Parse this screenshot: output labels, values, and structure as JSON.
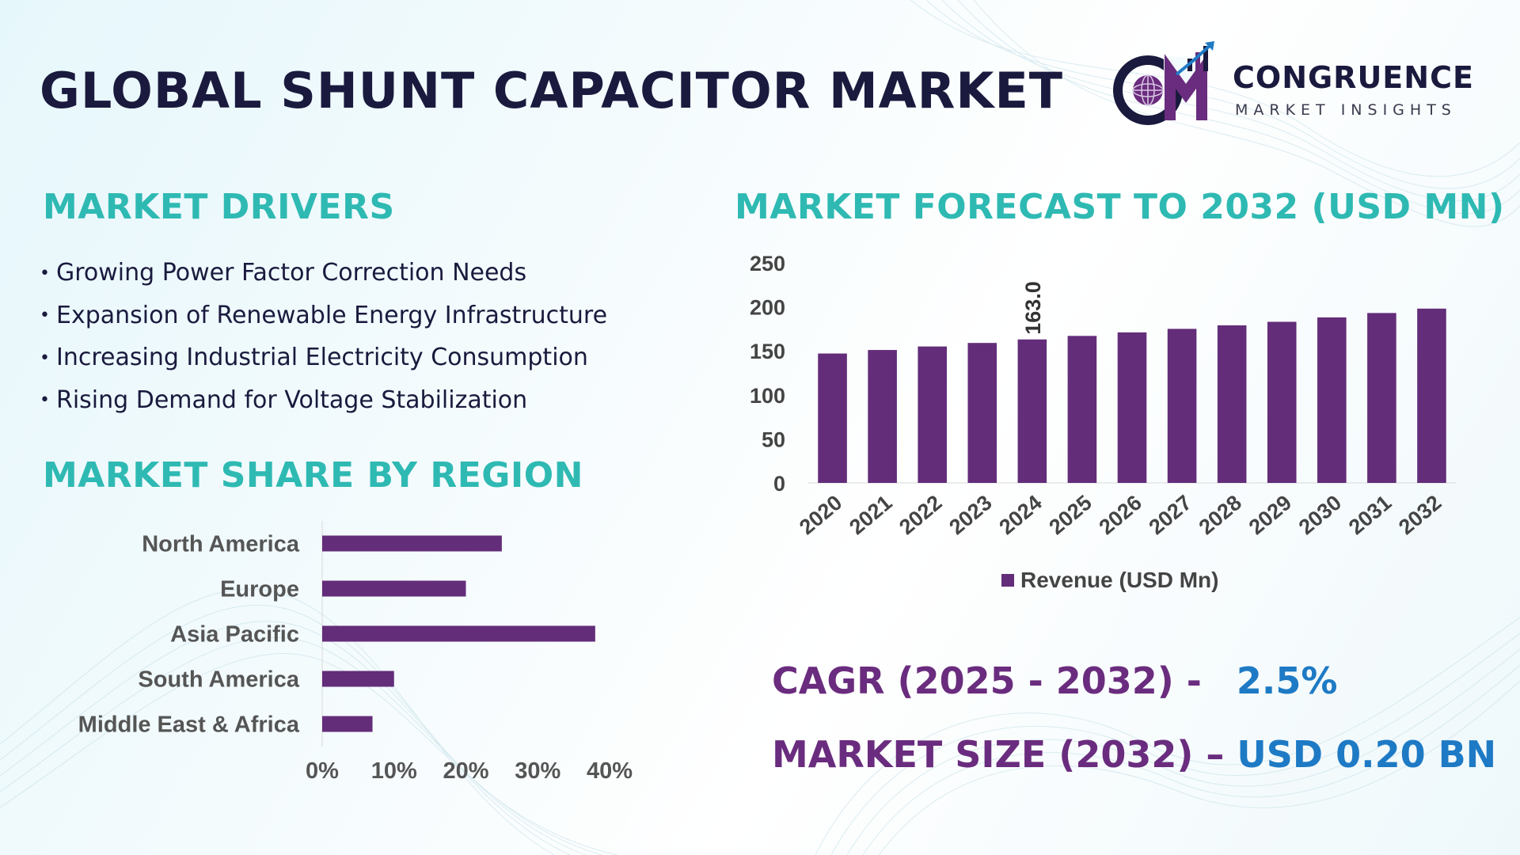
{
  "header": {
    "title": "GLOBAL SHUNT CAPACITOR MARKET",
    "logo_name": "CONGRUENCE",
    "logo_tagline": "MARKET INSIGHTS",
    "logo_icon": "cmi-globe-chart-logo-icon"
  },
  "drivers": {
    "title": "MARKET DRIVERS",
    "items": [
      "Growing Power Factor Correction Needs",
      "Expansion of Renewable Energy Infrastructure",
      "Increasing Industrial Electricity Consumption",
      "Rising Demand for Voltage Stabilization"
    ]
  },
  "region": {
    "title": "MARKET SHARE BY REGION"
  },
  "forecast": {
    "title": "MARKET FORECAST TO 2032 (USD MN)"
  },
  "stats": {
    "cagr_label": "CAGR (2025 - 2032) -",
    "cagr_value": "2.5%",
    "size_label": "MARKET SIZE (2032) –",
    "size_value": "USD 0.20 BN"
  },
  "colors": {
    "bar": "#632d7a",
    "section_title": "#2fb9b3",
    "stat_label": "#6a2c7e",
    "stat_value": "#1e7ac4",
    "title": "#1a1a3e"
  },
  "chart_data": [
    {
      "type": "bar",
      "orientation": "vertical",
      "title": "MARKET FORECAST TO 2032 (USD MN)",
      "categories": [
        "2020",
        "2021",
        "2022",
        "2023",
        "2024",
        "2025",
        "2026",
        "2027",
        "2028",
        "2029",
        "2030",
        "2031",
        "2032"
      ],
      "series": [
        {
          "name": "Revenue (USD Mn)",
          "values": [
            147,
            151,
            155,
            159,
            163.0,
            167,
            171,
            175,
            179,
            183,
            188,
            193,
            198
          ]
        }
      ],
      "data_labels": [
        {
          "category": "2024",
          "label": "163.0"
        }
      ],
      "yticks": [
        "0",
        "50",
        "100",
        "150",
        "200",
        "250"
      ],
      "ylim": [
        0,
        250
      ],
      "legend": "bottom",
      "grid": false
    },
    {
      "type": "bar",
      "orientation": "horizontal",
      "title": "MARKET SHARE BY REGION",
      "categories": [
        "North America",
        "Europe",
        "Asia Pacific",
        "South America",
        "Middle East & Africa"
      ],
      "values": [
        25,
        20,
        38,
        10,
        7
      ],
      "unit": "%",
      "xticks": [
        "0%",
        "10%",
        "20%",
        "30%",
        "40%"
      ],
      "xlim": [
        0,
        40
      ],
      "grid": false
    }
  ]
}
